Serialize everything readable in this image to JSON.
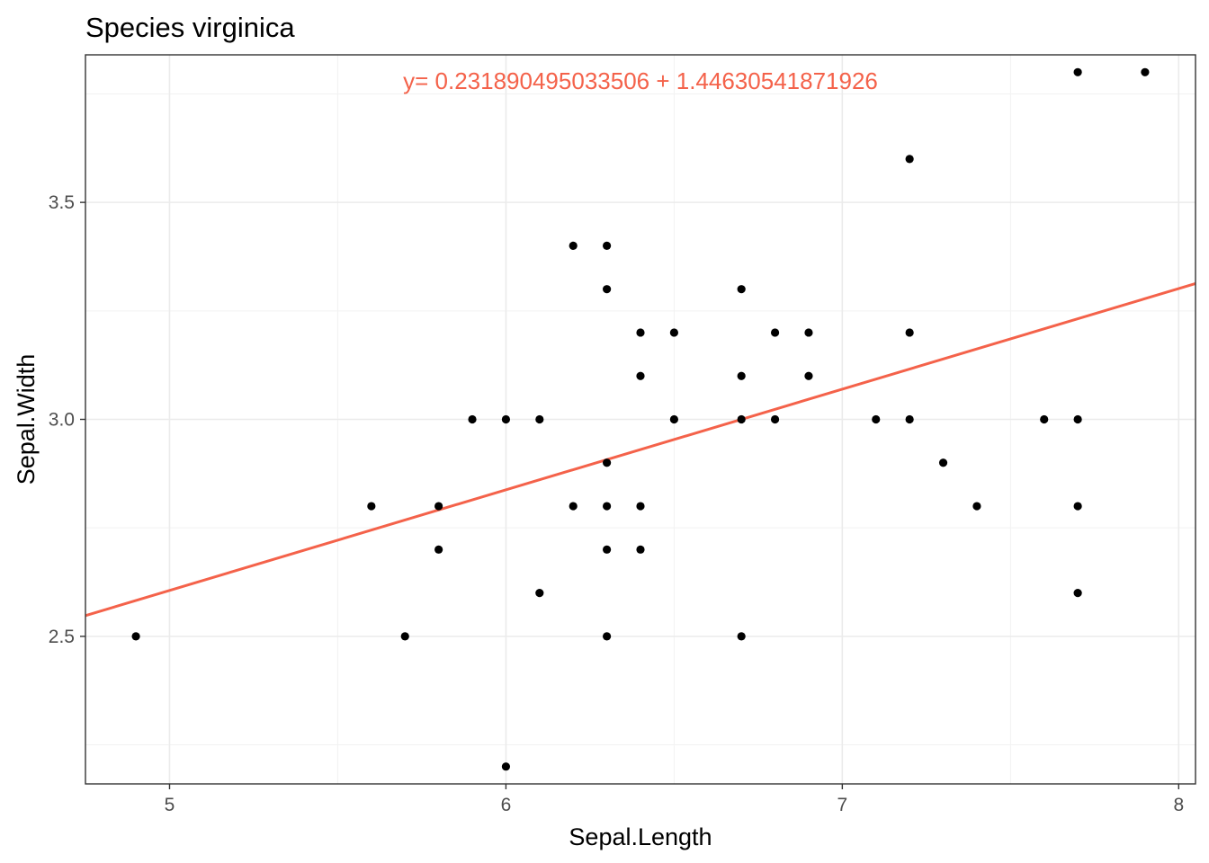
{
  "chart_data": {
    "type": "scatter",
    "title": "Species virginica",
    "xlabel": "Sepal.Length",
    "ylabel": "Sepal.Width",
    "xlim": [
      4.75,
      8.05
    ],
    "ylim": [
      2.16,
      3.84
    ],
    "x_ticks": [
      5,
      6,
      7,
      8
    ],
    "x_tick_labels": [
      "5",
      "6",
      "7",
      "8"
    ],
    "y_ticks": [
      2.5,
      3.0,
      3.5
    ],
    "y_tick_labels": [
      "2.5",
      "3.0",
      "3.5"
    ],
    "grid": true,
    "annotation": {
      "text": "y= 0.231890495033506 + 1.44630541871926",
      "color": "#f4624a",
      "x": 6.4,
      "y": 3.78
    },
    "fit_line": {
      "intercept": 1.44630541871926,
      "slope": 0.231890495033506,
      "color": "#f4624a"
    },
    "point_color": "#000000",
    "points": [
      [
        4.9,
        2.5
      ],
      [
        5.6,
        2.8
      ],
      [
        5.7,
        2.5
      ],
      [
        5.8,
        2.8
      ],
      [
        5.8,
        2.7
      ],
      [
        5.9,
        3.0
      ],
      [
        6.0,
        3.0
      ],
      [
        6.0,
        2.2
      ],
      [
        6.1,
        3.0
      ],
      [
        6.1,
        2.6
      ],
      [
        6.2,
        3.4
      ],
      [
        6.2,
        2.8
      ],
      [
        6.3,
        3.4
      ],
      [
        6.3,
        3.3
      ],
      [
        6.3,
        2.9
      ],
      [
        6.3,
        2.8
      ],
      [
        6.3,
        2.7
      ],
      [
        6.3,
        2.5
      ],
      [
        6.4,
        3.2
      ],
      [
        6.4,
        3.1
      ],
      [
        6.4,
        2.8
      ],
      [
        6.4,
        2.7
      ],
      [
        6.5,
        3.2
      ],
      [
        6.5,
        3.0
      ],
      [
        6.7,
        3.3
      ],
      [
        6.7,
        3.1
      ],
      [
        6.7,
        3.0
      ],
      [
        6.7,
        2.5
      ],
      [
        6.8,
        3.2
      ],
      [
        6.8,
        3.0
      ],
      [
        6.9,
        3.2
      ],
      [
        6.9,
        3.1
      ],
      [
        7.1,
        3.0
      ],
      [
        7.2,
        3.6
      ],
      [
        7.2,
        3.2
      ],
      [
        7.2,
        3.0
      ],
      [
        7.3,
        2.9
      ],
      [
        7.4,
        2.8
      ],
      [
        7.6,
        3.0
      ],
      [
        7.7,
        3.8
      ],
      [
        7.7,
        3.0
      ],
      [
        7.7,
        2.8
      ],
      [
        7.7,
        2.6
      ],
      [
        7.9,
        3.8
      ]
    ]
  }
}
